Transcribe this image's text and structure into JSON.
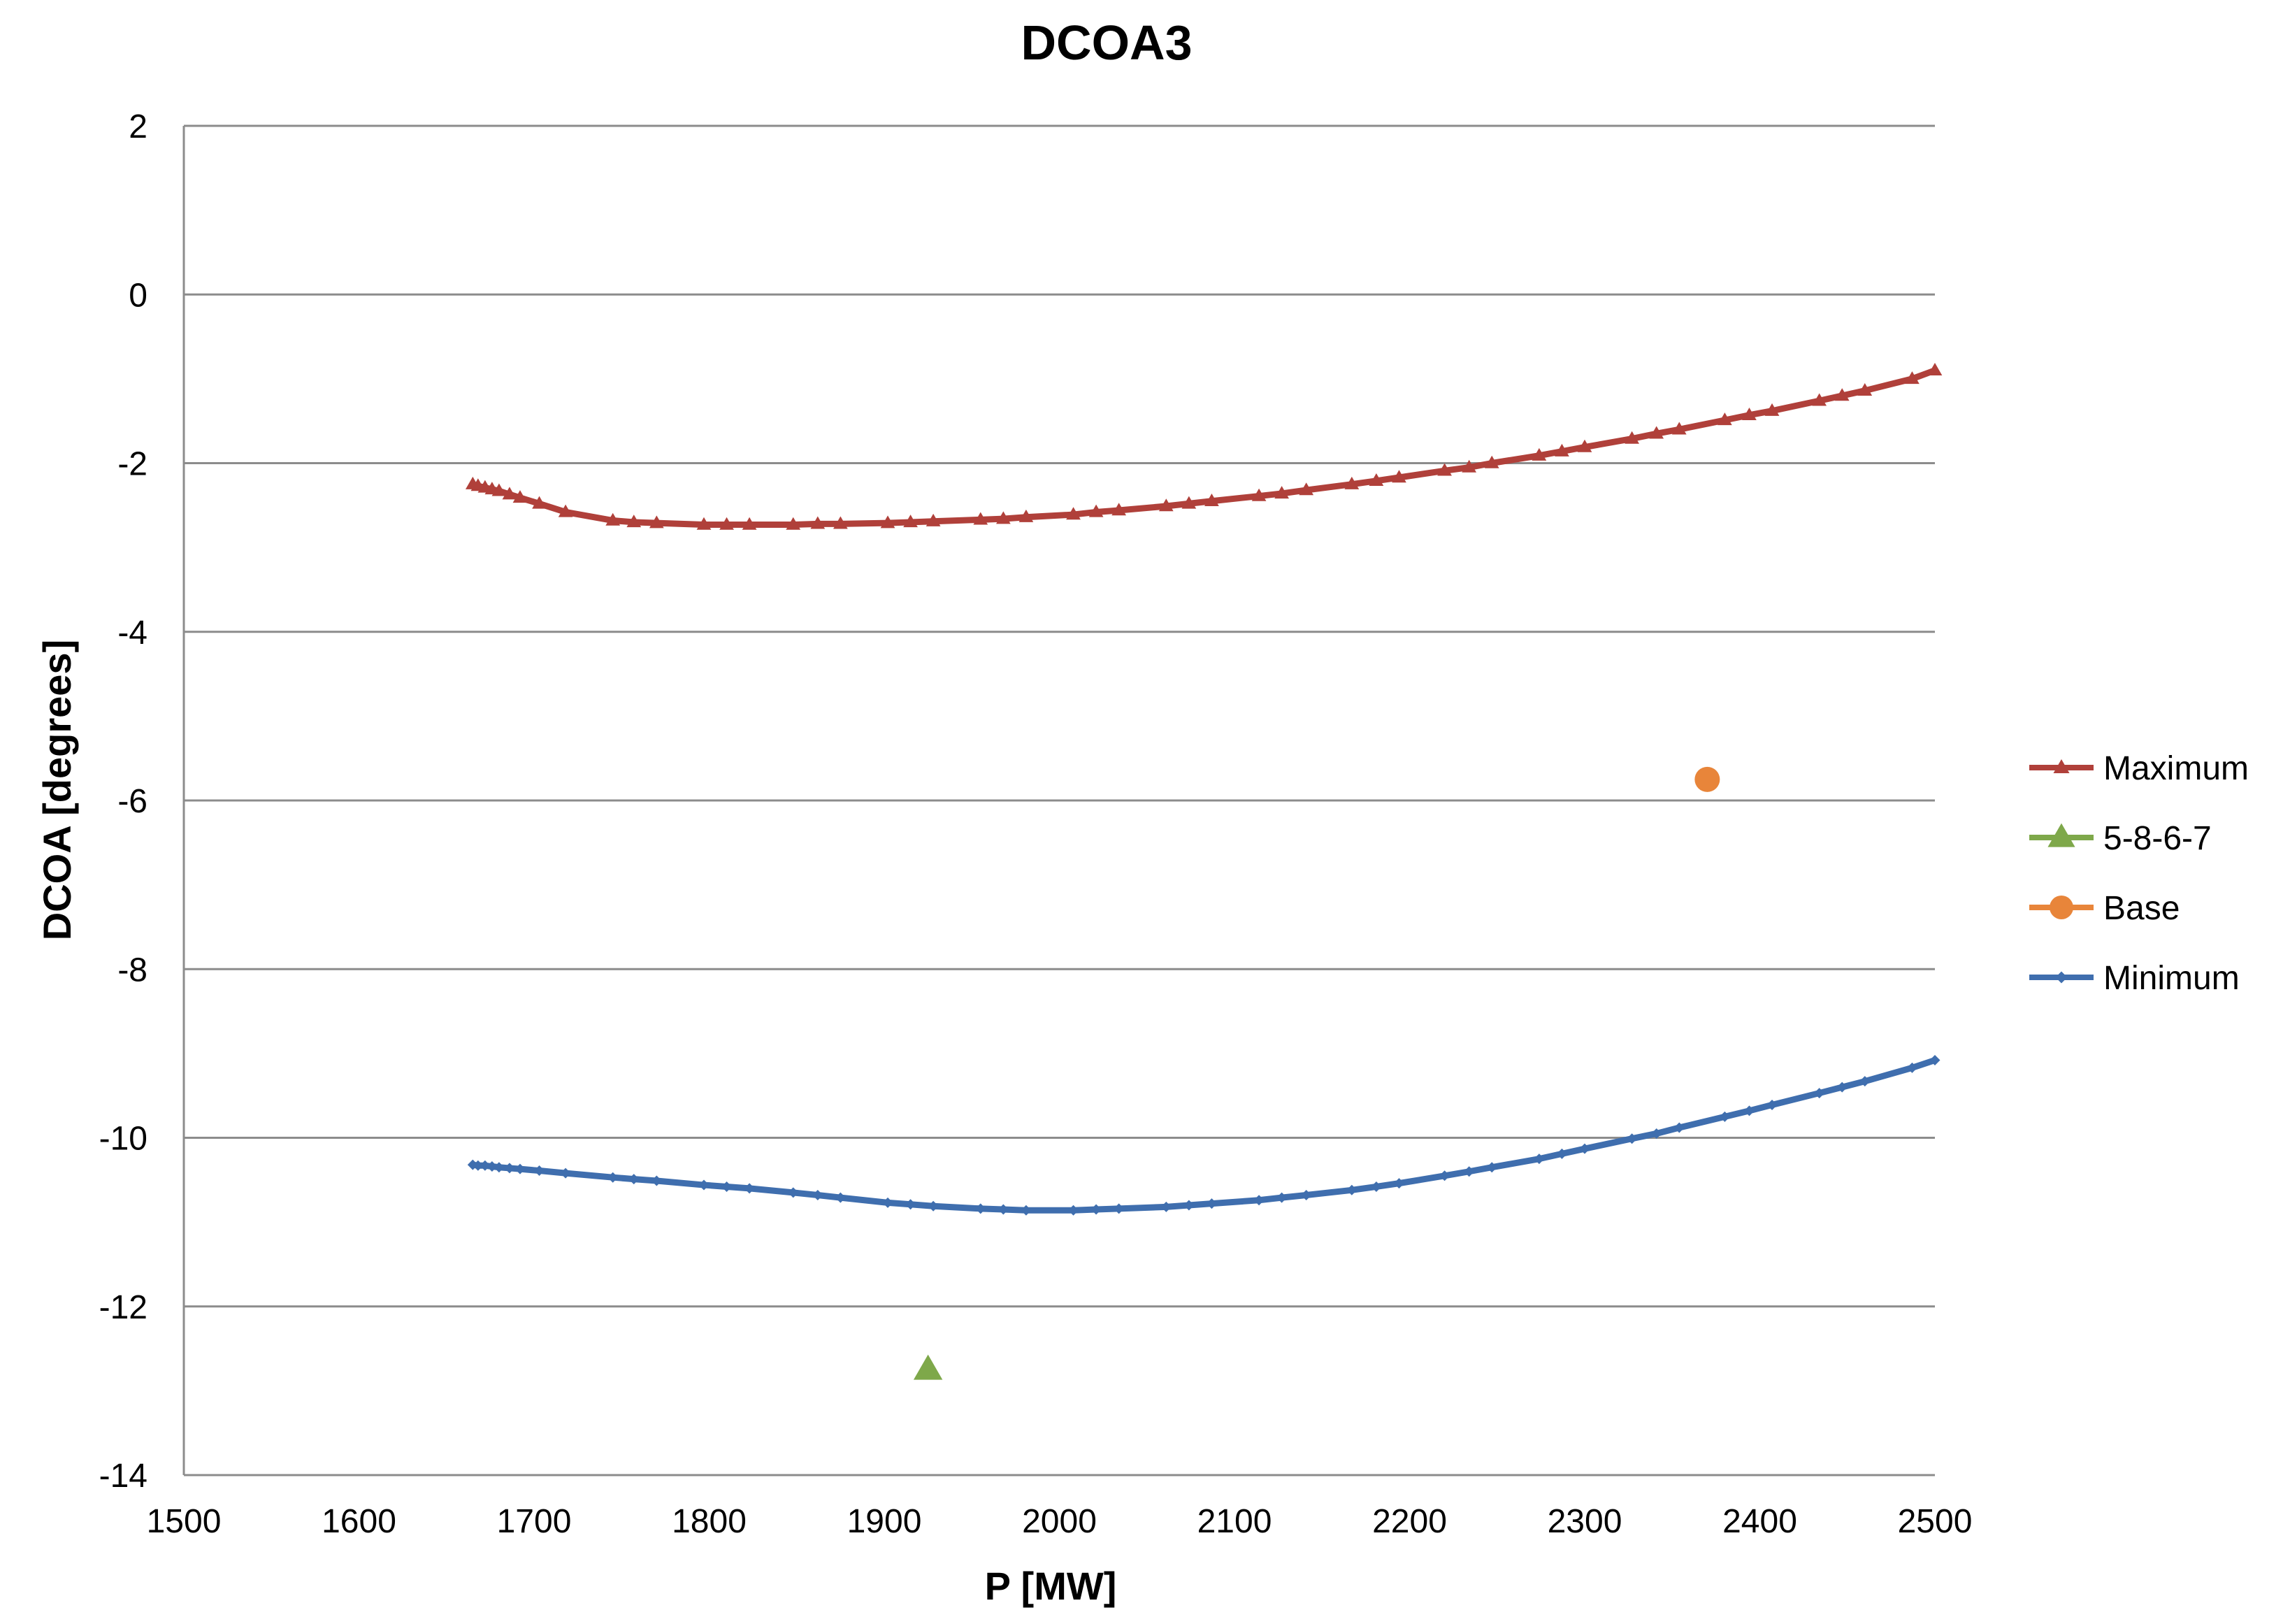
{
  "chart_data": {
    "type": "line",
    "title": "DCOA3",
    "xlabel": "P [MW]",
    "ylabel": "DCOA [degrees]",
    "xlim": [
      1500,
      2500
    ],
    "ylim": [
      -14,
      2
    ],
    "xticks": [
      1500,
      1600,
      1700,
      1800,
      1900,
      2000,
      2100,
      2200,
      2300,
      2400,
      2500
    ],
    "yticks": [
      2,
      0,
      -2,
      -4,
      -6,
      -8,
      -10,
      -12,
      -14
    ],
    "grid": "horizontal",
    "legend_position": "right",
    "series": [
      {
        "name": "Maximum",
        "color": "#b0403a",
        "marker": "triangle",
        "line": true,
        "points": [
          [
            1665,
            -2.25
          ],
          [
            1668,
            -2.27
          ],
          [
            1672,
            -2.29
          ],
          [
            1676,
            -2.31
          ],
          [
            1680,
            -2.33
          ],
          [
            1686,
            -2.37
          ],
          [
            1692,
            -2.41
          ],
          [
            1703,
            -2.48
          ],
          [
            1718,
            -2.58
          ],
          [
            1745,
            -2.68
          ],
          [
            1757,
            -2.7
          ],
          [
            1770,
            -2.71
          ],
          [
            1797,
            -2.73
          ],
          [
            1810,
            -2.73
          ],
          [
            1823,
            -2.73
          ],
          [
            1848,
            -2.73
          ],
          [
            1862,
            -2.72
          ],
          [
            1875,
            -2.72
          ],
          [
            1902,
            -2.71
          ],
          [
            1915,
            -2.7
          ],
          [
            1928,
            -2.69
          ],
          [
            1955,
            -2.67
          ],
          [
            1968,
            -2.66
          ],
          [
            1981,
            -2.64
          ],
          [
            2008,
            -2.61
          ],
          [
            2021,
            -2.58
          ],
          [
            2034,
            -2.56
          ],
          [
            2061,
            -2.51
          ],
          [
            2074,
            -2.48
          ],
          [
            2087,
            -2.45
          ],
          [
            2114,
            -2.39
          ],
          [
            2127,
            -2.36
          ],
          [
            2141,
            -2.32
          ],
          [
            2167,
            -2.25
          ],
          [
            2181,
            -2.21
          ],
          [
            2194,
            -2.17
          ],
          [
            2220,
            -2.09
          ],
          [
            2234,
            -2.05
          ],
          [
            2247,
            -2.0
          ],
          [
            2274,
            -1.91
          ],
          [
            2287,
            -1.86
          ],
          [
            2300,
            -1.81
          ],
          [
            2327,
            -1.71
          ],
          [
            2341,
            -1.65
          ],
          [
            2354,
            -1.6
          ],
          [
            2380,
            -1.49
          ],
          [
            2394,
            -1.43
          ],
          [
            2407,
            -1.38
          ],
          [
            2434,
            -1.26
          ],
          [
            2447,
            -1.2
          ],
          [
            2460,
            -1.14
          ],
          [
            2487,
            -1.0
          ],
          [
            2500,
            -0.9
          ]
        ]
      },
      {
        "name": "5-8-6-7",
        "color": "#7ea84a",
        "marker": "triangle",
        "line": false,
        "points": [
          [
            1925,
            -12.75
          ]
        ]
      },
      {
        "name": "Base",
        "color": "#e8853a",
        "marker": "circle",
        "line": false,
        "points": [
          [
            2370,
            -5.75
          ]
        ]
      },
      {
        "name": "Minimum",
        "color": "#3f6eae",
        "marker": "diamond",
        "line": true,
        "points": [
          [
            1665,
            -10.32
          ],
          [
            1668,
            -10.33
          ],
          [
            1672,
            -10.33
          ],
          [
            1676,
            -10.34
          ],
          [
            1680,
            -10.35
          ],
          [
            1686,
            -10.36
          ],
          [
            1692,
            -10.37
          ],
          [
            1703,
            -10.39
          ],
          [
            1718,
            -10.42
          ],
          [
            1745,
            -10.47
          ],
          [
            1757,
            -10.49
          ],
          [
            1770,
            -10.51
          ],
          [
            1797,
            -10.56
          ],
          [
            1810,
            -10.58
          ],
          [
            1823,
            -10.6
          ],
          [
            1848,
            -10.65
          ],
          [
            1862,
            -10.68
          ],
          [
            1875,
            -10.71
          ],
          [
            1902,
            -10.77
          ],
          [
            1915,
            -10.79
          ],
          [
            1928,
            -10.81
          ],
          [
            1955,
            -10.84
          ],
          [
            1968,
            -10.85
          ],
          [
            1981,
            -10.86
          ],
          [
            2008,
            -10.86
          ],
          [
            2021,
            -10.85
          ],
          [
            2034,
            -10.84
          ],
          [
            2061,
            -10.82
          ],
          [
            2074,
            -10.8
          ],
          [
            2087,
            -10.78
          ],
          [
            2114,
            -10.74
          ],
          [
            2127,
            -10.71
          ],
          [
            2141,
            -10.68
          ],
          [
            2167,
            -10.62
          ],
          [
            2181,
            -10.58
          ],
          [
            2194,
            -10.54
          ],
          [
            2220,
            -10.45
          ],
          [
            2234,
            -10.4
          ],
          [
            2247,
            -10.35
          ],
          [
            2274,
            -10.25
          ],
          [
            2287,
            -10.19
          ],
          [
            2300,
            -10.13
          ],
          [
            2327,
            -10.01
          ],
          [
            2341,
            -9.95
          ],
          [
            2354,
            -9.88
          ],
          [
            2380,
            -9.75
          ],
          [
            2394,
            -9.68
          ],
          [
            2407,
            -9.61
          ],
          [
            2434,
            -9.47
          ],
          [
            2447,
            -9.4
          ],
          [
            2460,
            -9.33
          ],
          [
            2487,
            -9.17
          ],
          [
            2500,
            -9.08
          ]
        ]
      }
    ]
  }
}
